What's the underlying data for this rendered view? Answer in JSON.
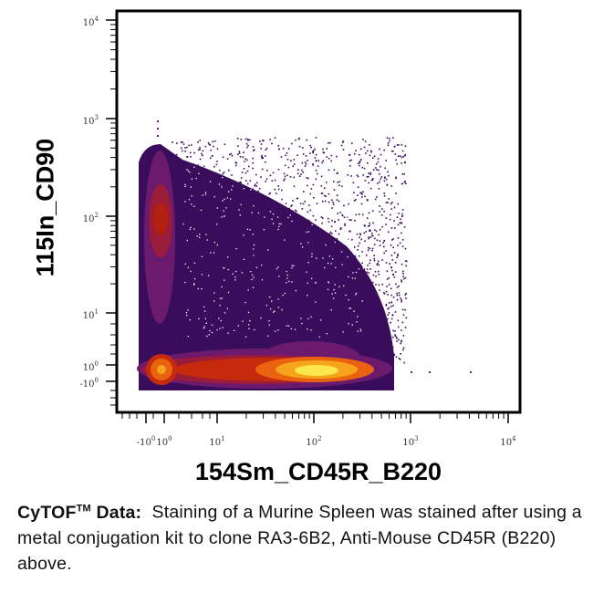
{
  "chart_data": {
    "type": "scatter",
    "subtype": "density-pseudocolor",
    "xlabel": "154Sm_CD45R_B220",
    "ylabel": "115In_CD90",
    "x_scale": "biexponential",
    "y_scale": "biexponential",
    "x_ticks": [
      "-10^0",
      "10^0",
      "10^1",
      "10^2",
      "10^3",
      "10^4"
    ],
    "y_ticks": [
      "10^4",
      "10^3",
      "10^2",
      "10^1",
      "10^0",
      "-10^0"
    ],
    "xlim": [
      -3,
      10000
    ],
    "ylim": [
      -3,
      10000
    ],
    "populations": [
      {
        "x": 0.3,
        "y": 100,
        "density": "high"
      },
      {
        "x": 0.3,
        "y": 0.3,
        "density": "high"
      },
      {
        "x": 120,
        "y": 0.3,
        "density": "highest"
      }
    ],
    "grid": false,
    "colors": [
      "#3a0d5c",
      "#6b1a6e",
      "#9a1b3a",
      "#c52a0c",
      "#e8620f",
      "#f6a41c",
      "#fde84c"
    ]
  },
  "caption": {
    "brand": "CyTOF",
    "trademark": "TM",
    "label_suffix": " Data:",
    "text_line1": "  Staining of a Murine Spleen was",
    "text_rest": "stained after using a metal conjugation kit to clone RA3-6B2, Anti-Mouse CD45R (B220) above."
  }
}
